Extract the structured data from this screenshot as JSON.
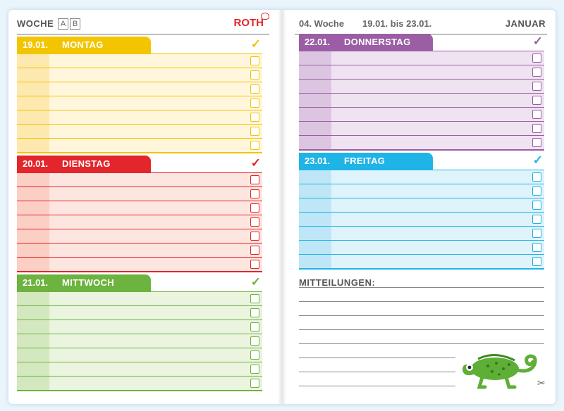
{
  "left": {
    "woche_label": "WOCHE",
    "week_boxes": [
      "A",
      "B"
    ],
    "logo": "ROTH"
  },
  "right": {
    "week": "04. Woche",
    "range": "19.01. bis 23.01.",
    "month": "JANUAR"
  },
  "days": [
    {
      "date": "19.01.",
      "name": "MONTAG",
      "color": "#f2c500",
      "tint": "#fff6dc",
      "strip": "#fde8b0",
      "line": "#f2c500",
      "rows": 7,
      "check": "✓"
    },
    {
      "date": "20.01.",
      "name": "DIENSTAG",
      "color": "#e3262b",
      "tint": "#fde6e0",
      "strip": "#fbcfc4",
      "line": "#e3262b",
      "rows": 7,
      "check": "✓"
    },
    {
      "date": "21.01.",
      "name": "MITTWOCH",
      "color": "#6db33f",
      "tint": "#eaf4df",
      "strip": "#d3e8bf",
      "line": "#6db33f",
      "rows": 7,
      "check": "✓"
    },
    {
      "date": "22.01.",
      "name": "DONNERSTAG",
      "color": "#9b5ea5",
      "tint": "#efe2f1",
      "strip": "#dcc5e1",
      "line": "#9b5ea5",
      "rows": 7,
      "check": "✓"
    },
    {
      "date": "23.01.",
      "name": "FREITAG",
      "color": "#1fb4e6",
      "tint": "#dff3fb",
      "strip": "#bfe6f6",
      "line": "#1fb4e6",
      "rows": 7,
      "check": "✓"
    }
  ],
  "mitteilungen": {
    "title": "MITTEILUNGEN:"
  },
  "icons": {
    "chameleon": "chameleon-illustration",
    "scissors": "scissors-icon"
  }
}
